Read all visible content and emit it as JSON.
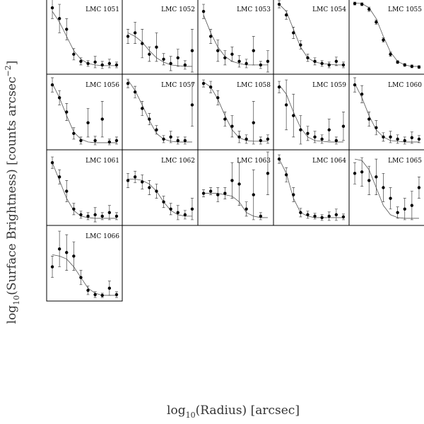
{
  "figure": {
    "x_label": {
      "pre": "log",
      "sub": "10",
      "post": "(Radius) [arcsec]"
    },
    "y_label": {
      "pre": "log",
      "sub": "10",
      "mid": "(Surface Brightness) [counts arcsec",
      "sup": "−2",
      "post": "]"
    }
  },
  "chart_data": [
    {
      "type": "scatter",
      "title": "LMC 1051",
      "xlim": [
        0,
        1
      ],
      "ylim": [
        0,
        1
      ],
      "x": [
        0.05,
        0.15,
        0.25,
        0.35,
        0.45,
        0.55,
        0.65,
        0.75,
        0.85,
        0.95
      ],
      "values": [
        0.9,
        0.75,
        0.6,
        0.25,
        0.15,
        0.12,
        0.14,
        0.1,
        0.12,
        0.1
      ],
      "errors": [
        0.15,
        0.2,
        0.15,
        0.08,
        0.05,
        0.04,
        0.08,
        0.05,
        0.06,
        0.04
      ],
      "fit": [
        0.85,
        0.7,
        0.5,
        0.3,
        0.18,
        0.12,
        0.1,
        0.09,
        0.09,
        0.09
      ]
    },
    {
      "type": "scatter",
      "title": "LMC 1052",
      "xlim": [
        0,
        1
      ],
      "ylim": [
        0,
        1
      ],
      "x": [
        0.05,
        0.15,
        0.25,
        0.35,
        0.45,
        0.55,
        0.65,
        0.75,
        0.85,
        0.95
      ],
      "values": [
        0.5,
        0.55,
        0.4,
        0.25,
        0.35,
        0.18,
        0.12,
        0.2,
        0.1,
        0.3
      ],
      "errors": [
        0.1,
        0.15,
        0.2,
        0.1,
        0.2,
        0.08,
        0.1,
        0.12,
        0.06,
        0.3
      ],
      "fit": [
        0.55,
        0.5,
        0.42,
        0.3,
        0.2,
        0.14,
        0.1,
        0.09,
        0.08,
        0.08
      ]
    },
    {
      "type": "scatter",
      "title": "LMC 1053",
      "xlim": [
        0,
        1
      ],
      "ylim": [
        0,
        1
      ],
      "x": [
        0.05,
        0.15,
        0.25,
        0.35,
        0.45,
        0.55,
        0.65,
        0.75,
        0.85,
        0.95
      ],
      "values": [
        0.85,
        0.5,
        0.3,
        0.2,
        0.25,
        0.15,
        0.12,
        0.3,
        0.1,
        0.15
      ],
      "errors": [
        0.1,
        0.1,
        0.15,
        0.1,
        0.1,
        0.08,
        0.06,
        0.2,
        0.05,
        0.15
      ],
      "fit": [
        0.8,
        0.55,
        0.35,
        0.22,
        0.15,
        0.12,
        0.1,
        0.1,
        0.1,
        0.1
      ]
    },
    {
      "type": "scatter",
      "title": "LMC 1054",
      "xlim": [
        0,
        1
      ],
      "ylim": [
        0,
        1
      ],
      "x": [
        0.05,
        0.15,
        0.25,
        0.35,
        0.45,
        0.55,
        0.65,
        0.75,
        0.85,
        0.95
      ],
      "values": [
        0.95,
        0.8,
        0.55,
        0.38,
        0.2,
        0.15,
        0.12,
        0.1,
        0.15,
        0.1
      ],
      "errors": [
        0.05,
        0.06,
        0.08,
        0.06,
        0.05,
        0.05,
        0.04,
        0.04,
        0.06,
        0.04
      ],
      "fit": [
        0.95,
        0.85,
        0.6,
        0.35,
        0.2,
        0.14,
        0.12,
        0.11,
        0.1,
        0.1
      ]
    },
    {
      "type": "scatter",
      "title": "LMC 1055",
      "xlim": [
        0,
        1
      ],
      "ylim": [
        0,
        1
      ],
      "x": [
        0.05,
        0.15,
        0.25,
        0.35,
        0.45,
        0.55,
        0.65,
        0.75,
        0.85,
        0.95
      ],
      "values": [
        0.96,
        0.95,
        0.88,
        0.7,
        0.45,
        0.25,
        0.14,
        0.1,
        0.08,
        0.07
      ],
      "errors": [
        0.02,
        0.02,
        0.03,
        0.03,
        0.03,
        0.03,
        0.02,
        0.02,
        0.02,
        0.02
      ],
      "fit": [
        0.97,
        0.96,
        0.9,
        0.75,
        0.5,
        0.28,
        0.15,
        0.1,
        0.08,
        0.08
      ]
    },
    {
      "type": "scatter",
      "title": "LMC 1056",
      "xlim": [
        0,
        1
      ],
      "ylim": [
        0,
        1
      ],
      "x": [
        0.05,
        0.15,
        0.25,
        0.35,
        0.45,
        0.55,
        0.65,
        0.75,
        0.85,
        0.95
      ],
      "values": [
        0.88,
        0.7,
        0.5,
        0.2,
        0.1,
        0.35,
        0.1,
        0.4,
        0.08,
        0.1
      ],
      "errors": [
        0.1,
        0.1,
        0.12,
        0.08,
        0.05,
        0.2,
        0.06,
        0.25,
        0.04,
        0.05
      ],
      "fit": [
        0.9,
        0.7,
        0.45,
        0.22,
        0.12,
        0.08,
        0.07,
        0.07,
        0.07,
        0.07
      ]
    },
    {
      "type": "scatter",
      "title": "LMC 1057",
      "xlim": [
        0,
        1
      ],
      "ylim": [
        0,
        1
      ],
      "x": [
        0.05,
        0.15,
        0.25,
        0.35,
        0.45,
        0.55,
        0.65,
        0.75,
        0.85,
        0.95
      ],
      "values": [
        0.9,
        0.78,
        0.55,
        0.4,
        0.25,
        0.12,
        0.15,
        0.1,
        0.1,
        0.6
      ],
      "errors": [
        0.06,
        0.08,
        0.1,
        0.08,
        0.06,
        0.05,
        0.08,
        0.05,
        0.05,
        0.3
      ],
      "fit": [
        0.95,
        0.8,
        0.6,
        0.38,
        0.2,
        0.12,
        0.09,
        0.08,
        0.08,
        0.08
      ]
    },
    {
      "type": "scatter",
      "title": "LMC 1058",
      "xlim": [
        0,
        1
      ],
      "ylim": [
        0,
        1
      ],
      "x": [
        0.05,
        0.15,
        0.25,
        0.35,
        0.45,
        0.55,
        0.65,
        0.75,
        0.85,
        0.95
      ],
      "values": [
        0.9,
        0.85,
        0.7,
        0.4,
        0.3,
        0.15,
        0.12,
        0.35,
        0.1,
        0.12
      ],
      "errors": [
        0.05,
        0.08,
        0.1,
        0.1,
        0.15,
        0.08,
        0.06,
        0.3,
        0.05,
        0.06
      ],
      "fit": [
        0.92,
        0.85,
        0.68,
        0.45,
        0.25,
        0.14,
        0.1,
        0.09,
        0.09,
        0.09
      ]
    },
    {
      "type": "scatter",
      "title": "LMC 1059",
      "xlim": [
        0,
        1
      ],
      "ylim": [
        0,
        1
      ],
      "x": [
        0.05,
        0.15,
        0.25,
        0.35,
        0.45,
        0.55,
        0.65,
        0.75,
        0.85,
        0.95
      ],
      "values": [
        0.85,
        0.6,
        0.45,
        0.25,
        0.2,
        0.15,
        0.12,
        0.25,
        0.1,
        0.3
      ],
      "errors": [
        0.08,
        0.35,
        0.3,
        0.2,
        0.1,
        0.08,
        0.06,
        0.15,
        0.05,
        0.2
      ],
      "fit": [
        0.88,
        0.75,
        0.5,
        0.28,
        0.15,
        0.1,
        0.09,
        0.08,
        0.08,
        0.08
      ]
    },
    {
      "type": "scatter",
      "title": "LMC 1060",
      "xlim": [
        0,
        1
      ],
      "ylim": [
        0,
        1
      ],
      "x": [
        0.05,
        0.15,
        0.25,
        0.35,
        0.45,
        0.55,
        0.65,
        0.75,
        0.85,
        0.95
      ],
      "values": [
        0.88,
        0.75,
        0.4,
        0.28,
        0.15,
        0.15,
        0.12,
        0.1,
        0.14,
        0.12
      ],
      "errors": [
        0.1,
        0.12,
        0.1,
        0.1,
        0.06,
        0.08,
        0.06,
        0.05,
        0.08,
        0.05
      ],
      "fit": [
        0.9,
        0.7,
        0.45,
        0.25,
        0.15,
        0.1,
        0.09,
        0.08,
        0.08,
        0.08
      ]
    },
    {
      "type": "scatter",
      "title": "LMC 1061",
      "xlim": [
        0,
        1
      ],
      "ylim": [
        0,
        1
      ],
      "x": [
        0.05,
        0.15,
        0.25,
        0.35,
        0.45,
        0.55,
        0.65,
        0.75,
        0.85,
        0.95
      ],
      "values": [
        0.85,
        0.65,
        0.45,
        0.2,
        0.12,
        0.1,
        0.12,
        0.1,
        0.15,
        0.1
      ],
      "errors": [
        0.08,
        0.1,
        0.15,
        0.08,
        0.05,
        0.05,
        0.1,
        0.05,
        0.1,
        0.05
      ],
      "fit": [
        0.85,
        0.6,
        0.35,
        0.18,
        0.1,
        0.08,
        0.07,
        0.07,
        0.07,
        0.07
      ]
    },
    {
      "type": "scatter",
      "title": "LMC 1062",
      "xlim": [
        0,
        1
      ],
      "ylim": [
        0,
        1
      ],
      "x": [
        0.05,
        0.15,
        0.25,
        0.35,
        0.45,
        0.55,
        0.65,
        0.75,
        0.85,
        0.95
      ],
      "values": [
        0.6,
        0.65,
        0.58,
        0.5,
        0.45,
        0.3,
        0.2,
        0.15,
        0.12,
        0.2
      ],
      "errors": [
        0.1,
        0.08,
        0.1,
        0.1,
        0.1,
        0.08,
        0.08,
        0.1,
        0.06,
        0.15
      ],
      "fit": [
        0.62,
        0.62,
        0.6,
        0.55,
        0.45,
        0.3,
        0.18,
        0.12,
        0.1,
        0.1
      ]
    },
    {
      "type": "scatter",
      "title": "LMC 1063",
      "xlim": [
        0,
        1
      ],
      "ylim": [
        0,
        1
      ],
      "x": [
        0.05,
        0.15,
        0.25,
        0.35,
        0.45,
        0.55,
        0.65,
        0.75,
        0.85,
        0.95
      ],
      "values": [
        0.42,
        0.45,
        0.4,
        0.42,
        0.6,
        0.55,
        0.2,
        0.4,
        0.1,
        0.7
      ],
      "errors": [
        0.05,
        0.05,
        0.1,
        0.08,
        0.25,
        0.3,
        0.1,
        0.35,
        0.05,
        0.3
      ],
      "fit": [
        0.42,
        0.42,
        0.42,
        0.4,
        0.38,
        0.3,
        0.15,
        0.1,
        0.08,
        0.08
      ]
    },
    {
      "type": "scatter",
      "title": "LMC 1064",
      "xlim": [
        0,
        1
      ],
      "ylim": [
        0,
        1
      ],
      "x": [
        0.05,
        0.15,
        0.25,
        0.35,
        0.45,
        0.55,
        0.65,
        0.75,
        0.85,
        0.95
      ],
      "values": [
        0.9,
        0.68,
        0.4,
        0.15,
        0.12,
        0.1,
        0.08,
        0.1,
        0.12,
        0.09
      ],
      "errors": [
        0.06,
        0.1,
        0.1,
        0.06,
        0.05,
        0.04,
        0.04,
        0.06,
        0.08,
        0.04
      ],
      "fit": [
        0.9,
        0.7,
        0.35,
        0.15,
        0.1,
        0.08,
        0.08,
        0.08,
        0.08,
        0.08
      ]
    },
    {
      "type": "scatter",
      "title": "LMC 1065",
      "xlim": [
        0,
        1
      ],
      "ylim": [
        0,
        1
      ],
      "x": [
        0.05,
        0.15,
        0.25,
        0.35,
        0.45,
        0.55,
        0.65,
        0.75,
        0.85,
        0.95
      ],
      "values": [
        0.7,
        0.72,
        0.6,
        0.65,
        0.5,
        0.35,
        0.15,
        0.2,
        0.25,
        0.5
      ],
      "errors": [
        0.15,
        0.2,
        0.2,
        0.25,
        0.2,
        0.15,
        0.08,
        0.15,
        0.2,
        0.15
      ],
      "fit": [
        0.9,
        0.88,
        0.75,
        0.5,
        0.25,
        0.12,
        0.08,
        0.07,
        0.07,
        0.07
      ]
    },
    {
      "type": "scatter",
      "title": "LMC 1066",
      "xlim": [
        0,
        1
      ],
      "ylim": [
        0,
        1
      ],
      "x": [
        0.05,
        0.15,
        0.25,
        0.35,
        0.45,
        0.55,
        0.65,
        0.75,
        0.85,
        0.95
      ],
      "values": [
        0.45,
        0.7,
        0.65,
        0.6,
        0.3,
        0.12,
        0.06,
        0.05,
        0.15,
        0.06
      ],
      "errors": [
        0.15,
        0.25,
        0.25,
        0.2,
        0.1,
        0.06,
        0.04,
        0.03,
        0.1,
        0.04
      ],
      "fit": [
        0.62,
        0.6,
        0.56,
        0.45,
        0.3,
        0.15,
        0.08,
        0.05,
        0.05,
        0.05
      ]
    }
  ]
}
